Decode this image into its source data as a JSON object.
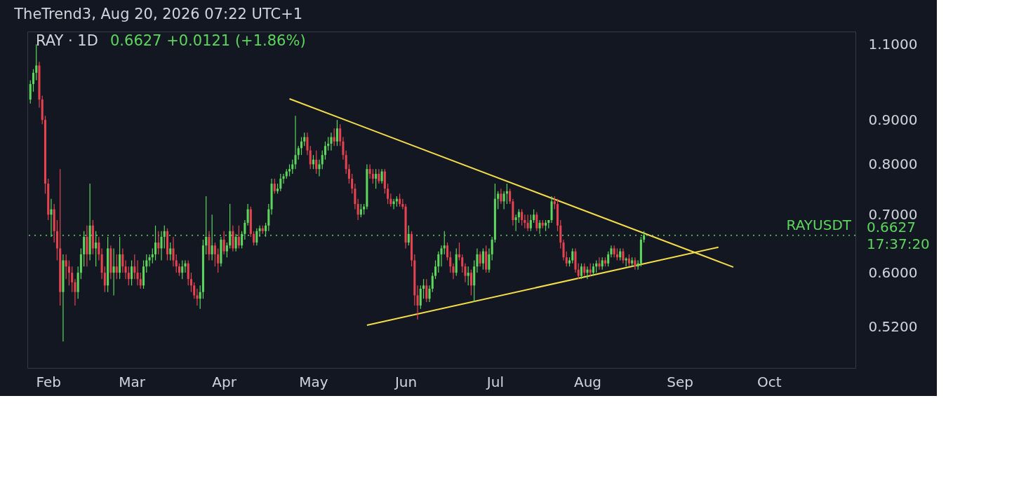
{
  "chart_data": {
    "type": "candlestick",
    "title": "TheTrend3, Aug 20, 2026 07:22 UTC+1",
    "subtitle": "RAY · 1D",
    "colors": [
      "#5cd65c",
      "#5cd65c",
      "#5cd65c",
      "#e5434f",
      "#e5434f",
      "#e5434f",
      "#e5434f",
      "#5cd65c",
      "#e5434f",
      "#e5434f",
      "#e5434f",
      "#5cd65c",
      "#e5434f",
      "#e5434f",
      "#e5434f",
      "#e5434f",
      "#5cd65c",
      "#5cd65c",
      "#5cd65c",
      "#e5434f",
      "#5cd65c",
      "#e5434f",
      "#5cd65c",
      "#e5434f",
      "#e5434f",
      "#e5434f",
      "#5cd65c",
      "#e5434f",
      "#5cd65c",
      "#e5434f",
      "#5cd65c",
      "#e5434f",
      "#e5434f",
      "#e5434f",
      "#5cd65c",
      "#e5434f",
      "#e5434f",
      "#e5434f",
      "#5cd65c",
      "#5cd65c",
      "#5cd65c",
      "#5cd65c",
      "#5cd65c",
      "#e5434f",
      "#5cd65c",
      "#5cd65c",
      "#e5434f",
      "#5cd65c",
      "#e5434f",
      "#e5434f",
      "#e5434f",
      "#5cd65c",
      "#5cd65c",
      "#e5434f",
      "#e5434f",
      "#e5434f",
      "#e5434f",
      "#5cd65c",
      "#5cd65c",
      "#5cd65c",
      "#e5434f",
      "#5cd65c",
      "#e5434f",
      "#e5434f",
      "#5cd65c",
      "#e5434f",
      "#5cd65c",
      "#5cd65c",
      "#e5434f",
      "#5cd65c",
      "#e5434f",
      "#5cd65c",
      "#5cd65c",
      "#5cd65c",
      "#e5434f",
      "#e5434f",
      "#5cd65c",
      "#5cd65c",
      "#e5434f",
      "#5cd65c",
      "#5cd65c",
      "#5cd65c",
      "#e5434f",
      "#5cd65c",
      "#5cd65c",
      "#5cd65c",
      "#5cd65c",
      "#5cd65c",
      "#5cd65c",
      "#5cd65c",
      "#5cd65c",
      "#5cd65c",
      "#5cd65c",
      "#e5434f",
      "#e5434f",
      "#5cd65c",
      "#e5434f",
      "#5cd65c",
      "#5cd65c",
      "#5cd65c",
      "#5cd65c",
      "#5cd65c",
      "#e5434f",
      "#5cd65c",
      "#e5434f",
      "#e5434f",
      "#e5434f",
      "#e5434f",
      "#e5434f",
      "#e5434f",
      "#e5434f",
      "#5cd65c",
      "#5cd65c",
      "#5cd65c",
      "#e5434f",
      "#e5434f",
      "#5cd65c",
      "#e5434f",
      "#5cd65c",
      "#e5434f",
      "#e5434f",
      "#e5434f",
      "#5cd65c",
      "#5cd65c",
      "#e5434f",
      "#e5434f",
      "#e5434f",
      "#5cd65c",
      "#e5434f",
      "#e5434f",
      "#e5434f",
      "#5cd65c",
      "#5cd65c",
      "#e5434f",
      "#5cd65c",
      "#5cd65c",
      "#5cd65c",
      "#5cd65c",
      "#5cd65c",
      "#5cd65c",
      "#e5434f",
      "#e5434f",
      "#e5434f",
      "#5cd65c",
      "#e5434f",
      "#e5434f",
      "#e5434f",
      "#5cd65c",
      "#e5434f",
      "#5cd65c",
      "#5cd65c",
      "#e5434f",
      "#5cd65c",
      "#e5434f",
      "#5cd65c",
      "#5cd65c",
      "#5cd65c",
      "#5cd65c",
      "#e5434f",
      "#5cd65c",
      "#5cd65c",
      "#e5434f",
      "#e5434f",
      "#5cd65c",
      "#5cd65c",
      "#e5434f",
      "#e5434f",
      "#e5434f",
      "#5cd65c",
      "#5cd65c",
      "#e5434f",
      "#5cd65c",
      "#e5434f",
      "#5cd65c",
      "#5cd65c",
      "#5cd65c",
      "#e5434f",
      "#e5434f",
      "#e5434f",
      "#e5434f",
      "#e5434f",
      "#5cd65c",
      "#5cd65c",
      "#e5434f",
      "#e5434f",
      "#5cd65c",
      "#e5434f",
      "#5cd65c",
      "#e5434f",
      "#5cd65c",
      "#5cd65c",
      "#e5434f",
      "#5cd65c",
      "#e5434f",
      "#5cd65c",
      "#5cd65c",
      "#e5434f",
      "#e5434f",
      "#5cd65c",
      "#e5434f",
      "#5cd65c",
      "#e5434f",
      "#5cd65c",
      "#e5434f",
      "#5cd65c",
      "#5cd65c",
      "#5cd65c"
    ],
    "x": [
      "2026-01-26",
      "2026-01-27",
      "2026-01-28",
      "2026-01-29",
      "2026-01-30",
      "2026-01-31",
      "2026-02-01",
      "2026-02-02",
      "2026-02-03",
      "2026-02-04",
      "2026-02-05",
      "2026-02-06",
      "2026-02-07",
      "2026-02-08",
      "2026-02-09",
      "2026-02-10",
      "2026-02-11",
      "2026-02-12",
      "2026-02-13",
      "2026-02-14",
      "2026-02-15",
      "2026-02-16",
      "2026-02-17",
      "2026-02-18",
      "2026-02-19",
      "2026-02-20",
      "2026-02-21",
      "2026-02-22",
      "2026-02-23",
      "2026-02-24",
      "2026-02-25",
      "2026-02-26",
      "2026-02-27",
      "2026-02-28",
      "2026-03-01",
      "2026-03-02",
      "2026-03-03",
      "2026-03-04",
      "2026-03-05",
      "2026-03-06",
      "2026-03-07",
      "2026-03-08",
      "2026-03-09",
      "2026-03-10",
      "2026-03-11",
      "2026-03-12",
      "2026-03-13",
      "2026-03-14",
      "2026-03-15",
      "2026-03-16",
      "2026-03-17",
      "2026-03-18",
      "2026-03-19",
      "2026-03-20",
      "2026-03-21",
      "2026-03-22",
      "2026-03-23",
      "2026-03-24",
      "2026-03-25",
      "2026-03-26",
      "2026-03-27",
      "2026-03-28",
      "2026-03-29",
      "2026-03-30",
      "2026-03-31",
      "2026-04-01",
      "2026-04-02",
      "2026-04-03",
      "2026-04-04",
      "2026-04-05",
      "2026-04-06",
      "2026-04-07",
      "2026-04-08",
      "2026-04-09",
      "2026-04-10",
      "2026-04-11",
      "2026-04-12",
      "2026-04-13",
      "2026-04-14",
      "2026-04-15",
      "2026-04-16",
      "2026-04-17",
      "2026-04-18",
      "2026-04-19",
      "2026-04-20",
      "2026-04-21",
      "2026-04-22",
      "2026-04-23",
      "2026-04-24",
      "2026-04-25",
      "2026-04-26",
      "2026-04-27",
      "2026-04-28",
      "2026-04-29",
      "2026-04-30",
      "2026-05-01",
      "2026-05-02",
      "2026-05-03",
      "2026-05-04",
      "2026-05-05",
      "2026-05-06",
      "2026-05-07",
      "2026-05-08",
      "2026-05-09",
      "2026-05-10",
      "2026-05-11",
      "2026-05-12",
      "2026-05-13",
      "2026-05-14",
      "2026-05-15",
      "2026-05-16",
      "2026-05-17",
      "2026-05-18",
      "2026-05-19",
      "2026-05-20",
      "2026-05-21",
      "2026-05-22",
      "2026-05-23",
      "2026-05-24",
      "2026-05-25",
      "2026-05-26",
      "2026-05-27",
      "2026-05-28",
      "2026-05-29",
      "2026-05-30",
      "2026-05-31",
      "2026-06-01",
      "2026-06-02",
      "2026-06-03",
      "2026-06-04",
      "2026-06-05",
      "2026-06-06",
      "2026-06-07",
      "2026-06-08",
      "2026-06-09",
      "2026-06-10",
      "2026-06-11",
      "2026-06-12",
      "2026-06-13",
      "2026-06-14",
      "2026-06-15",
      "2026-06-16",
      "2026-06-17",
      "2026-06-18",
      "2026-06-19",
      "2026-06-20",
      "2026-06-21",
      "2026-06-22",
      "2026-06-23",
      "2026-06-24",
      "2026-06-25",
      "2026-06-26",
      "2026-06-27",
      "2026-06-28",
      "2026-06-29",
      "2026-06-30",
      "2026-07-01",
      "2026-07-02",
      "2026-07-03",
      "2026-07-04",
      "2026-07-05",
      "2026-07-06",
      "2026-07-07",
      "2026-07-08",
      "2026-07-09",
      "2026-07-10",
      "2026-07-11",
      "2026-07-12",
      "2026-07-13",
      "2026-07-14",
      "2026-07-15",
      "2026-07-16",
      "2026-07-17",
      "2026-07-18",
      "2026-07-19",
      "2026-07-20",
      "2026-07-21",
      "2026-07-22",
      "2026-07-23",
      "2026-07-24",
      "2026-07-25",
      "2026-07-26",
      "2026-07-27",
      "2026-07-28",
      "2026-07-29",
      "2026-07-30",
      "2026-07-31",
      "2026-08-01",
      "2026-08-02",
      "2026-08-03",
      "2026-08-04",
      "2026-08-05",
      "2026-08-06",
      "2026-08-07",
      "2026-08-08",
      "2026-08-09",
      "2026-08-10",
      "2026-08-11",
      "2026-08-12",
      "2026-08-13",
      "2026-08-14",
      "2026-08-15",
      "2026-08-16",
      "2026-08-17",
      "2026-08-18",
      "2026-08-19",
      "2026-08-20"
    ],
    "ohlc": [
      [
        0.95,
        1.0,
        0.94,
        0.99
      ],
      [
        0.99,
        1.03,
        0.97,
        1.02
      ],
      [
        1.02,
        1.1,
        1.0,
        1.04
      ],
      [
        1.04,
        1.05,
        0.93,
        0.95
      ],
      [
        0.95,
        0.96,
        0.89,
        0.9
      ],
      [
        0.9,
        0.91,
        0.74,
        0.76
      ],
      [
        0.76,
        0.77,
        0.69,
        0.7
      ],
      [
        0.7,
        0.73,
        0.66,
        0.71
      ],
      [
        0.71,
        0.72,
        0.65,
        0.67
      ],
      [
        0.67,
        0.69,
        0.62,
        0.64
      ],
      [
        0.64,
        0.79,
        0.55,
        0.57
      ],
      [
        0.57,
        0.63,
        0.5,
        0.62
      ],
      [
        0.62,
        0.63,
        0.59,
        0.61
      ],
      [
        0.61,
        0.62,
        0.58,
        0.6
      ],
      [
        0.6,
        0.61,
        0.57,
        0.585
      ],
      [
        0.585,
        0.59,
        0.55,
        0.57
      ],
      [
        0.57,
        0.61,
        0.56,
        0.6
      ],
      [
        0.6,
        0.64,
        0.59,
        0.63
      ],
      [
        0.63,
        0.67,
        0.61,
        0.66
      ],
      [
        0.66,
        0.68,
        0.61,
        0.63
      ],
      [
        0.63,
        0.76,
        0.62,
        0.68
      ],
      [
        0.68,
        0.69,
        0.63,
        0.64
      ],
      [
        0.64,
        0.67,
        0.61,
        0.65
      ],
      [
        0.65,
        0.66,
        0.62,
        0.63
      ],
      [
        0.63,
        0.64,
        0.59,
        0.6
      ],
      [
        0.6,
        0.61,
        0.57,
        0.58
      ],
      [
        0.58,
        0.66,
        0.57,
        0.64
      ],
      [
        0.64,
        0.645,
        0.59,
        0.6
      ],
      [
        0.6,
        0.64,
        0.565,
        0.61
      ],
      [
        0.61,
        0.63,
        0.59,
        0.6
      ],
      [
        0.6,
        0.66,
        0.59,
        0.63
      ],
      [
        0.63,
        0.64,
        0.6,
        0.61
      ],
      [
        0.61,
        0.62,
        0.59,
        0.6
      ],
      [
        0.6,
        0.61,
        0.58,
        0.59
      ],
      [
        0.59,
        0.62,
        0.58,
        0.61
      ],
      [
        0.61,
        0.63,
        0.59,
        0.6
      ],
      [
        0.6,
        0.62,
        0.58,
        0.59
      ],
      [
        0.59,
        0.6,
        0.575,
        0.58
      ],
      [
        0.58,
        0.62,
        0.575,
        0.61
      ],
      [
        0.61,
        0.63,
        0.6,
        0.62
      ],
      [
        0.62,
        0.63,
        0.61,
        0.625
      ],
      [
        0.625,
        0.64,
        0.615,
        0.63
      ],
      [
        0.63,
        0.68,
        0.62,
        0.65
      ],
      [
        0.65,
        0.67,
        0.63,
        0.64
      ],
      [
        0.64,
        0.67,
        0.62,
        0.66
      ],
      [
        0.66,
        0.68,
        0.64,
        0.67
      ],
      [
        0.67,
        0.675,
        0.62,
        0.63
      ],
      [
        0.63,
        0.65,
        0.62,
        0.64
      ],
      [
        0.64,
        0.66,
        0.61,
        0.62
      ],
      [
        0.62,
        0.63,
        0.6,
        0.61
      ],
      [
        0.61,
        0.615,
        0.595,
        0.6
      ],
      [
        0.6,
        0.62,
        0.59,
        0.61
      ],
      [
        0.61,
        0.62,
        0.6,
        0.615
      ],
      [
        0.615,
        0.62,
        0.58,
        0.59
      ],
      [
        0.59,
        0.6,
        0.57,
        0.58
      ],
      [
        0.58,
        0.585,
        0.56,
        0.565
      ],
      [
        0.565,
        0.575,
        0.55,
        0.56
      ],
      [
        0.56,
        0.58,
        0.545,
        0.57
      ],
      [
        0.57,
        0.655,
        0.56,
        0.645
      ],
      [
        0.645,
        0.735,
        0.63,
        0.66
      ],
      [
        0.66,
        0.67,
        0.62,
        0.63
      ],
      [
        0.63,
        0.7,
        0.62,
        0.645
      ],
      [
        0.645,
        0.65,
        0.61,
        0.63
      ],
      [
        0.63,
        0.64,
        0.6,
        0.615
      ],
      [
        0.615,
        0.66,
        0.61,
        0.655
      ],
      [
        0.655,
        0.67,
        0.63,
        0.635
      ],
      [
        0.635,
        0.65,
        0.625,
        0.645
      ],
      [
        0.645,
        0.72,
        0.64,
        0.67
      ],
      [
        0.67,
        0.68,
        0.635,
        0.64
      ],
      [
        0.64,
        0.665,
        0.635,
        0.66
      ],
      [
        0.66,
        0.68,
        0.64,
        0.645
      ],
      [
        0.645,
        0.67,
        0.64,
        0.665
      ],
      [
        0.665,
        0.69,
        0.655,
        0.685
      ],
      [
        0.685,
        0.72,
        0.68,
        0.71
      ],
      [
        0.71,
        0.715,
        0.66,
        0.665
      ],
      [
        0.665,
        0.67,
        0.645,
        0.65
      ],
      [
        0.65,
        0.675,
        0.645,
        0.67
      ],
      [
        0.67,
        0.68,
        0.66,
        0.675
      ],
      [
        0.675,
        0.68,
        0.665,
        0.67
      ],
      [
        0.67,
        0.685,
        0.66,
        0.68
      ],
      [
        0.68,
        0.72,
        0.67,
        0.71
      ],
      [
        0.71,
        0.77,
        0.7,
        0.76
      ],
      [
        0.76,
        0.77,
        0.74,
        0.745
      ],
      [
        0.745,
        0.76,
        0.74,
        0.75
      ],
      [
        0.75,
        0.78,
        0.745,
        0.77
      ],
      [
        0.77,
        0.78,
        0.76,
        0.775
      ],
      [
        0.775,
        0.79,
        0.77,
        0.785
      ],
      [
        0.785,
        0.8,
        0.775,
        0.79
      ],
      [
        0.79,
        0.81,
        0.78,
        0.8
      ],
      [
        0.8,
        0.91,
        0.79,
        0.82
      ],
      [
        0.82,
        0.84,
        0.81,
        0.835
      ],
      [
        0.835,
        0.86,
        0.82,
        0.85
      ],
      [
        0.85,
        0.87,
        0.84,
        0.86
      ],
      [
        0.86,
        0.87,
        0.82,
        0.83
      ],
      [
        0.83,
        0.84,
        0.79,
        0.8
      ],
      [
        0.8,
        0.82,
        0.79,
        0.81
      ],
      [
        0.81,
        0.83,
        0.78,
        0.79
      ],
      [
        0.79,
        0.81,
        0.775,
        0.8
      ],
      [
        0.8,
        0.83,
        0.79,
        0.82
      ],
      [
        0.82,
        0.85,
        0.81,
        0.84
      ],
      [
        0.84,
        0.86,
        0.83,
        0.845
      ],
      [
        0.845,
        0.87,
        0.83,
        0.86
      ],
      [
        0.86,
        0.88,
        0.84,
        0.85
      ],
      [
        0.85,
        0.9,
        0.84,
        0.88
      ],
      [
        0.88,
        0.89,
        0.84,
        0.85
      ],
      [
        0.85,
        0.86,
        0.81,
        0.82
      ],
      [
        0.82,
        0.83,
        0.78,
        0.79
      ],
      [
        0.79,
        0.8,
        0.76,
        0.77
      ],
      [
        0.77,
        0.78,
        0.74,
        0.75
      ],
      [
        0.75,
        0.76,
        0.71,
        0.72
      ],
      [
        0.72,
        0.73,
        0.69,
        0.7
      ],
      [
        0.7,
        0.72,
        0.695,
        0.71
      ],
      [
        0.71,
        0.72,
        0.7,
        0.715
      ],
      [
        0.715,
        0.8,
        0.71,
        0.79
      ],
      [
        0.79,
        0.8,
        0.77,
        0.78
      ],
      [
        0.78,
        0.79,
        0.76,
        0.77
      ],
      [
        0.77,
        0.79,
        0.75,
        0.78
      ],
      [
        0.78,
        0.79,
        0.76,
        0.765
      ],
      [
        0.765,
        0.79,
        0.76,
        0.785
      ],
      [
        0.785,
        0.79,
        0.74,
        0.75
      ],
      [
        0.75,
        0.76,
        0.72,
        0.73
      ],
      [
        0.73,
        0.74,
        0.715,
        0.72
      ],
      [
        0.72,
        0.73,
        0.71,
        0.725
      ],
      [
        0.725,
        0.735,
        0.715,
        0.73
      ],
      [
        0.73,
        0.74,
        0.715,
        0.72
      ],
      [
        0.72,
        0.73,
        0.71,
        0.715
      ],
      [
        0.715,
        0.72,
        0.64,
        0.65
      ],
      [
        0.65,
        0.68,
        0.645,
        0.665
      ],
      [
        0.665,
        0.67,
        0.61,
        0.62
      ],
      [
        0.62,
        0.63,
        0.55,
        0.565
      ],
      [
        0.565,
        0.58,
        0.53,
        0.55
      ],
      [
        0.55,
        0.58,
        0.545,
        0.575
      ],
      [
        0.575,
        0.59,
        0.56,
        0.58
      ],
      [
        0.58,
        0.59,
        0.555,
        0.56
      ],
      [
        0.56,
        0.58,
        0.555,
        0.575
      ],
      [
        0.575,
        0.6,
        0.57,
        0.595
      ],
      [
        0.595,
        0.62,
        0.59,
        0.61
      ],
      [
        0.61,
        0.635,
        0.6,
        0.63
      ],
      [
        0.63,
        0.645,
        0.61,
        0.64
      ],
      [
        0.64,
        0.67,
        0.63,
        0.645
      ],
      [
        0.645,
        0.65,
        0.62,
        0.625
      ],
      [
        0.625,
        0.635,
        0.6,
        0.61
      ],
      [
        0.61,
        0.615,
        0.59,
        0.6
      ],
      [
        0.6,
        0.64,
        0.595,
        0.63
      ],
      [
        0.63,
        0.65,
        0.62,
        0.625
      ],
      [
        0.625,
        0.63,
        0.6,
        0.61
      ],
      [
        0.61,
        0.615,
        0.585,
        0.595
      ],
      [
        0.595,
        0.61,
        0.58,
        0.6
      ],
      [
        0.6,
        0.605,
        0.565,
        0.58
      ],
      [
        0.58,
        0.62,
        0.555,
        0.61
      ],
      [
        0.61,
        0.64,
        0.6,
        0.63
      ],
      [
        0.63,
        0.635,
        0.61,
        0.615
      ],
      [
        0.615,
        0.64,
        0.605,
        0.635
      ],
      [
        0.635,
        0.645,
        0.6,
        0.605
      ],
      [
        0.605,
        0.64,
        0.6,
        0.63
      ],
      [
        0.63,
        0.66,
        0.62,
        0.655
      ],
      [
        0.655,
        0.76,
        0.65,
        0.73
      ],
      [
        0.73,
        0.745,
        0.71,
        0.74
      ],
      [
        0.74,
        0.75,
        0.72,
        0.725
      ],
      [
        0.725,
        0.745,
        0.71,
        0.74
      ],
      [
        0.74,
        0.76,
        0.72,
        0.745
      ],
      [
        0.745,
        0.75,
        0.72,
        0.725
      ],
      [
        0.725,
        0.73,
        0.68,
        0.69
      ],
      [
        0.69,
        0.7,
        0.67,
        0.695
      ],
      [
        0.695,
        0.71,
        0.685,
        0.705
      ],
      [
        0.705,
        0.71,
        0.68,
        0.69
      ],
      [
        0.69,
        0.7,
        0.675,
        0.685
      ],
      [
        0.685,
        0.7,
        0.67,
        0.675
      ],
      [
        0.675,
        0.7,
        0.67,
        0.69
      ],
      [
        0.69,
        0.71,
        0.685,
        0.7
      ],
      [
        0.7,
        0.705,
        0.67,
        0.675
      ],
      [
        0.675,
        0.69,
        0.665,
        0.685
      ],
      [
        0.685,
        0.69,
        0.675,
        0.68
      ],
      [
        0.68,
        0.69,
        0.67,
        0.685
      ],
      [
        0.685,
        0.69,
        0.675,
        0.69
      ],
      [
        0.69,
        0.735,
        0.685,
        0.725
      ],
      [
        0.725,
        0.735,
        0.71,
        0.72
      ],
      [
        0.72,
        0.73,
        0.67,
        0.68
      ],
      [
        0.68,
        0.69,
        0.64,
        0.65
      ],
      [
        0.65,
        0.655,
        0.62,
        0.625
      ],
      [
        0.625,
        0.635,
        0.61,
        0.615
      ],
      [
        0.615,
        0.625,
        0.61,
        0.62
      ],
      [
        0.62,
        0.64,
        0.615,
        0.635
      ],
      [
        0.635,
        0.64,
        0.6,
        0.605
      ],
      [
        0.605,
        0.615,
        0.59,
        0.595
      ],
      [
        0.595,
        0.615,
        0.59,
        0.61
      ],
      [
        0.61,
        0.615,
        0.595,
        0.6
      ],
      [
        0.6,
        0.61,
        0.59,
        0.605
      ],
      [
        0.605,
        0.615,
        0.595,
        0.6
      ],
      [
        0.6,
        0.615,
        0.595,
        0.61
      ],
      [
        0.61,
        0.62,
        0.6,
        0.615
      ],
      [
        0.615,
        0.625,
        0.605,
        0.61
      ],
      [
        0.61,
        0.625,
        0.605,
        0.62
      ],
      [
        0.62,
        0.625,
        0.61,
        0.615
      ],
      [
        0.615,
        0.635,
        0.61,
        0.63
      ],
      [
        0.63,
        0.645,
        0.625,
        0.64
      ],
      [
        0.64,
        0.645,
        0.625,
        0.63
      ],
      [
        0.63,
        0.64,
        0.62,
        0.625
      ],
      [
        0.625,
        0.64,
        0.62,
        0.635
      ],
      [
        0.635,
        0.64,
        0.615,
        0.62
      ],
      [
        0.62,
        0.625,
        0.61,
        0.623
      ],
      [
        0.623,
        0.63,
        0.61,
        0.615
      ],
      [
        0.615,
        0.625,
        0.61,
        0.62
      ],
      [
        0.62,
        0.625,
        0.605,
        0.61
      ],
      [
        0.61,
        0.62,
        0.605,
        0.615
      ],
      [
        0.615,
        0.66,
        0.61,
        0.655
      ],
      [
        0.655,
        0.67,
        0.65,
        0.6627
      ]
    ],
    "series": [
      {
        "type": "line",
        "color": "#f5dc4a",
        "x": [
          "2026-04-23",
          "2026-09-19"
        ],
        "values": [
          0.952,
          0.609
        ]
      },
      {
        "type": "line",
        "color": "#f5dc4a",
        "x": [
          "2026-05-19",
          "2026-09-14"
        ],
        "values": [
          0.522,
          0.642
        ]
      }
    ],
    "ref_lines": [
      {
        "axis": "y",
        "value": 0.6627,
        "label": "RAYUSDT",
        "color": "#5cd65c",
        "line_style": "dotted"
      }
    ],
    "annotations": [
      "0.6627 +0.0121 (+1.86%)",
      "0.6627",
      "17:37:20"
    ],
    "log": "y",
    "grid": false,
    "xlim": [
      "2026-01-25",
      "2026-10-30"
    ],
    "xticks": [
      {
        "value": "2026-02-01",
        "label": "Feb"
      },
      {
        "value": "2026-03-01",
        "label": "Mar"
      },
      {
        "value": "2026-04-01",
        "label": "Apr"
      },
      {
        "value": "2026-05-01",
        "label": "May"
      },
      {
        "value": "2026-06-01",
        "label": "Jun"
      },
      {
        "value": "2026-07-01",
        "label": "Jul"
      },
      {
        "value": "2026-08-01",
        "label": "Aug"
      },
      {
        "value": "2026-09-01",
        "label": "Sep"
      },
      {
        "value": "2026-10-01",
        "label": "Oct"
      }
    ],
    "ylim": [
      0.466,
      1.138
    ],
    "yticks": [
      {
        "value": 0.52,
        "label": "0.5200"
      },
      {
        "value": 0.6,
        "label": "0.6000"
      },
      {
        "value": 0.7,
        "label": "0.7000"
      },
      {
        "value": 0.8,
        "label": "0.8000"
      },
      {
        "value": 0.9,
        "label": "0.9000"
      },
      {
        "value": 1.1,
        "label": "1.1000"
      }
    ]
  }
}
